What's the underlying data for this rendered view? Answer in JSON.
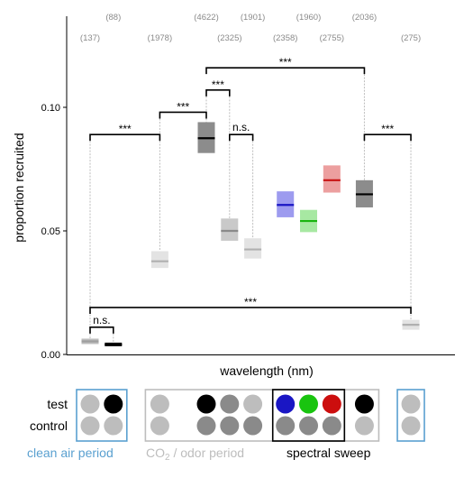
{
  "chart_data": {
    "type": "box",
    "ylabel": "proportion recruited",
    "xlabel": "wavelength (nm)",
    "yticks": [
      0.0,
      0.05,
      0.1
    ],
    "ytick_labels": [
      "0.00",
      "0.05",
      "0.10"
    ],
    "ylim": [
      0.0,
      0.138
    ],
    "series": [
      {
        "pos": 1,
        "n": "(137)",
        "n_row": "lower",
        "median": 0.0053,
        "low": 0.0042,
        "high": 0.0064,
        "fill": "#bdbdbd",
        "median_color": "#9e9e9e",
        "stem_top": 0.089
      },
      {
        "pos": 2,
        "n": "(88)",
        "n_row": "upper",
        "median": 0.004,
        "low": 0.0033,
        "high": 0.0048,
        "fill": "#1a1a1a",
        "median_color": "#000000",
        "stem_top": 0.011
      },
      {
        "pos": 4,
        "n": "(1978)",
        "n_row": "lower",
        "median": 0.0377,
        "low": 0.035,
        "high": 0.0418,
        "fill": "#e3e3e3",
        "median_color": "#b0b0b0",
        "stem_top": 0.098
      },
      {
        "pos": 6,
        "n": "(4622)",
        "n_row": "upper",
        "median": 0.0875,
        "low": 0.0815,
        "high": 0.094,
        "fill": "#8c8c8c",
        "median_color": "#000000",
        "stem_top": 0.107
      },
      {
        "pos": 7,
        "n": "(2325)",
        "n_row": "lower",
        "median": 0.05,
        "low": 0.046,
        "high": 0.055,
        "fill": "#c9c9c9",
        "median_color": "#8a8a8a",
        "stem_top": 0.107
      },
      {
        "pos": 8,
        "n": "(1901)",
        "n_row": "upper",
        "median": 0.0425,
        "low": 0.0388,
        "high": 0.047,
        "fill": "#e3e3e3",
        "median_color": "#b0b0b0",
        "stem_top": 0.089
      },
      {
        "pos": 9.4,
        "n": "(2358)",
        "n_row": "lower",
        "median": 0.0605,
        "low": 0.0555,
        "high": 0.066,
        "fill": "#9d9bef",
        "median_color": "#1a16c4",
        "stem_top": null
      },
      {
        "pos": 10.4,
        "n": "(1960)",
        "n_row": "upper",
        "median": 0.054,
        "low": 0.0495,
        "high": 0.0585,
        "fill": "#a7e8a2",
        "median_color": "#19b40f",
        "stem_top": null
      },
      {
        "pos": 11.4,
        "n": "(2755)",
        "n_row": "lower",
        "median": 0.0705,
        "low": 0.0655,
        "high": 0.0765,
        "fill": "#ec9f9f",
        "median_color": "#c81313",
        "stem_top": null
      },
      {
        "pos": 12.8,
        "n": "(2036)",
        "n_row": "upper",
        "median": 0.0648,
        "low": 0.0595,
        "high": 0.0705,
        "fill": "#8c8c8c",
        "median_color": "#000000",
        "stem_top": 0.116
      },
      {
        "pos": 14.8,
        "n": "(275)",
        "n_row": "lower",
        "median": 0.012,
        "low": 0.01,
        "high": 0.014,
        "fill": "#e3e3e3",
        "median_color": "#b0b0b0",
        "stem_top": 0.089
      }
    ],
    "brackets": [
      {
        "from": 1,
        "to": 2,
        "y": 0.011,
        "label": "n.s."
      },
      {
        "from": 1,
        "to": 4,
        "y": 0.089,
        "label": "***"
      },
      {
        "from": 4,
        "to": 6,
        "y": 0.098,
        "label": "***"
      },
      {
        "from": 6,
        "to": 7,
        "y": 0.107,
        "label": "***"
      },
      {
        "from": 7,
        "to": 8,
        "y": 0.089,
        "label": "n.s."
      },
      {
        "from": 6,
        "to": 12.8,
        "y": 0.116,
        "label": "***"
      },
      {
        "from": 12.8,
        "to": 14.8,
        "y": 0.089,
        "label": "***"
      },
      {
        "from": 1,
        "to": 14.8,
        "y": 0.019,
        "label": "***"
      }
    ]
  },
  "legend": {
    "row_labels": [
      "test",
      "control"
    ],
    "groups": [
      {
        "label": "clean air period",
        "label_color": "#5aa0d0",
        "box_color": "#5aa0d0"
      },
      {
        "label_main": "CO",
        "label_sub": "2",
        "label_rest": "  / odor period",
        "label_color": "#bdbdbd",
        "box_color": "#bdbdbd"
      },
      {
        "label": "spectral sweep",
        "label_color": "#000000",
        "box_color": "#000000"
      },
      {
        "label": "",
        "label_color": "#5aa0d0",
        "box_color": "#5aa0d0"
      }
    ],
    "test_dots": [
      {
        "pos": 1,
        "color": "#bdbdbd"
      },
      {
        "pos": 2,
        "color": "#000000"
      },
      {
        "pos": 4,
        "color": "#bdbdbd"
      },
      {
        "pos": 6,
        "color": "#000000"
      },
      {
        "pos": 7,
        "color": "#8a8a8a"
      },
      {
        "pos": 8,
        "color": "#bdbdbd"
      },
      {
        "pos": 9.4,
        "color": "#1a16c4"
      },
      {
        "pos": 10.4,
        "color": "#19c40f"
      },
      {
        "pos": 11.4,
        "color": "#cc0e0e"
      },
      {
        "pos": 12.8,
        "color": "#000000"
      },
      {
        "pos": 14.8,
        "color": "#bdbdbd"
      }
    ],
    "control_dots": [
      {
        "pos": 1,
        "color": "#bdbdbd"
      },
      {
        "pos": 2,
        "color": "#bdbdbd"
      },
      {
        "pos": 4,
        "color": "#bdbdbd"
      },
      {
        "pos": 6,
        "color": "#8a8a8a"
      },
      {
        "pos": 7,
        "color": "#8a8a8a"
      },
      {
        "pos": 8,
        "color": "#8a8a8a"
      },
      {
        "pos": 9.4,
        "color": "#8a8a8a"
      },
      {
        "pos": 10.4,
        "color": "#8a8a8a"
      },
      {
        "pos": 11.4,
        "color": "#8a8a8a"
      },
      {
        "pos": 12.8,
        "color": "#bdbdbd"
      },
      {
        "pos": 14.8,
        "color": "#bdbdbd"
      }
    ]
  }
}
